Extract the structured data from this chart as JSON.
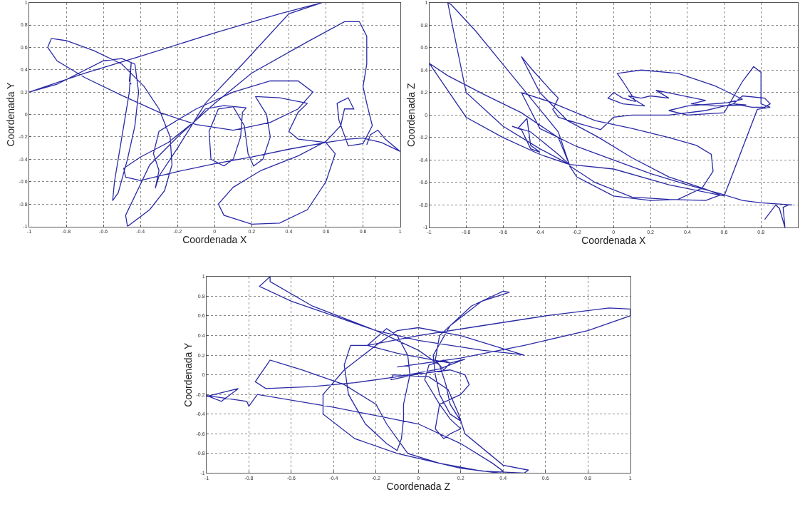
{
  "chart_data": [
    {
      "type": "line",
      "xlabel": "Coordenada X",
      "ylabel": "Coordenada Y",
      "xlim": [
        -1,
        1
      ],
      "ylim": [
        -1,
        1
      ],
      "xticks": [
        -1,
        -0.8,
        -0.6,
        -0.4,
        -0.2,
        0,
        0.2,
        0.4,
        0.6,
        0.8,
        1
      ],
      "yticks": [
        -1,
        -0.8,
        -0.6,
        -0.4,
        -0.2,
        0,
        0.2,
        0.4,
        0.6,
        0.8,
        1
      ],
      "grid": true,
      "line_style": "solid",
      "series": [
        {
          "color": "#2a2aa6",
          "x": [
            0.82,
            0.84,
            0.88,
            0.92,
            1.0,
            0.9,
            0.8,
            0.72,
            0.6,
            0.4,
            0.2,
            0,
            -0.2,
            -0.4,
            -0.48,
            -0.49,
            -0.4,
            -0.25,
            -0.1,
            -0.05,
            0.05,
            0.17,
            0.15,
            0.14,
            0.1,
            0.05,
            -0.02,
            -0.03,
            0.02,
            0.1,
            0.16,
            0.18,
            0.21,
            0.26,
            0.3,
            0.28,
            0.22,
            0.35,
            0.5,
            0.45,
            0.4,
            0.45,
            0.6,
            0.65,
            0.6,
            0.5,
            0.35,
            0.2,
            0.05,
            0.02,
            0.1,
            0.25,
            0.45,
            0.6,
            0.68,
            0.7,
            0.75,
            0.72,
            0.66,
            0.67,
            0.72,
            0.8,
            0.85,
            0.82,
            0.8,
            0.82,
            0.82,
            0.78,
            0.7,
            0.5,
            0.2,
            0,
            -0.2,
            -0.35,
            -0.48,
            -0.47,
            -0.35,
            -0.27,
            -0.23,
            -0.24,
            -0.3,
            -0.38,
            -0.5,
            -0.65,
            -0.8,
            -0.88,
            -0.9,
            -0.85,
            -0.7,
            -0.5,
            -0.3,
            -0.1,
            0.1,
            0.3,
            0.45,
            0.53,
            0.45,
            0.3,
            0.1,
            -0.1,
            -0.3,
            -0.33,
            -0.3,
            -0.32,
            -0.3,
            -0.2,
            -0.05,
            0.15,
            0.4,
            0.58,
            0.35,
            0,
            -0.4,
            -0.7,
            -1.0,
            -0.85,
            -0.6,
            -0.5,
            -0.43,
            -0.41,
            -0.43,
            -0.47,
            -0.52,
            -0.55,
            -0.54,
            -0.5,
            -0.46,
            -0.45,
            -0.46,
            -0.45
          ],
          "values": [
            -0.27,
            -0.18,
            -0.14,
            -0.22,
            -0.33,
            -0.25,
            -0.21,
            -0.22,
            -0.25,
            -0.31,
            -0.38,
            -0.44,
            -0.51,
            -0.59,
            -0.56,
            -0.48,
            -0.38,
            -0.25,
            -0.05,
            0.05,
            0.08,
            0.06,
            0.02,
            -0.2,
            -0.4,
            -0.46,
            -0.4,
            -0.15,
            0.05,
            0.07,
            -0.1,
            -0.35,
            -0.46,
            -0.4,
            -0.2,
            0.0,
            0.16,
            0.15,
            0.1,
            0.02,
            -0.15,
            -0.22,
            -0.25,
            -0.35,
            -0.6,
            -0.85,
            -0.97,
            -0.98,
            -0.9,
            -0.8,
            -0.65,
            -0.5,
            -0.37,
            -0.24,
            -0.1,
            0.05,
            0.05,
            0.15,
            0.1,
            -0.05,
            -0.28,
            -0.26,
            -0.1,
            0.1,
            0.25,
            0.45,
            0.7,
            0.83,
            0.83,
            0.65,
            0.37,
            0.1,
            -0.2,
            -0.45,
            -0.9,
            -1.0,
            -0.85,
            -0.68,
            -0.45,
            -0.2,
            0.05,
            0.25,
            0.45,
            0.57,
            0.66,
            0.68,
            0.6,
            0.48,
            0.33,
            0.17,
            0.02,
            -0.09,
            -0.14,
            -0.07,
            0.05,
            0.2,
            0.3,
            0.3,
            0.2,
            0.05,
            -0.15,
            -0.35,
            -0.5,
            -0.66,
            -0.55,
            -0.3,
            0.1,
            0.45,
            0.9,
            1.0,
            0.9,
            0.73,
            0.52,
            0.37,
            0.2,
            0.27,
            0.48,
            0.5,
            0.45,
            0.2,
            -0.1,
            -0.4,
            -0.7,
            -0.77,
            -0.6,
            -0.2,
            0.2,
            0.46,
            0.3,
            0.27
          ]
        }
      ]
    },
    {
      "type": "line",
      "xlabel": "Coordenada X",
      "ylabel": "Coordenada Z",
      "xlim": [
        -1,
        1
      ],
      "ylim": [
        -1,
        1
      ],
      "xticks": [
        -1,
        -0.8,
        -0.6,
        -0.4,
        -0.2,
        0,
        0.2,
        0.4,
        0.6,
        0.8,
        {
          "value": 1,
          "label": null
        }
      ],
      "yticks": [
        -1,
        -0.8,
        -0.6,
        -0.4,
        -0.2,
        0,
        0.2,
        0.4,
        0.6,
        0.8,
        1
      ],
      "grid": true,
      "line_style": "solid",
      "series": [
        {
          "color": "#2a2aa6",
          "x": [
            0.82,
            0.88,
            0.9,
            0.93,
            0.92,
            0.95,
            0.97,
            0.8,
            0.7,
            0.58,
            0.4,
            0.2,
            0,
            -0.2,
            -0.4,
            -0.5,
            -0.35,
            -0.1,
            0.1,
            0.3,
            0.45,
            0.53,
            0.54,
            0.48,
            0.35,
            0.2,
            0,
            -0.2,
            -0.24,
            -0.1,
            0.1,
            0.3,
            0.5,
            0.58,
            0.5,
            0.3,
            0.1,
            -0.08,
            -0.25,
            -0.4,
            -0.5,
            -0.44,
            -0.33,
            -0.3,
            -0.33,
            -0.3,
            -0.2,
            -0.07,
            0,
            0.1,
            0.3,
            0.5,
            0.65,
            0.75,
            0.82,
            0.85,
            0.82,
            0.7,
            0.65,
            0.72,
            0.55,
            0.42,
            0.5,
            0.35,
            0.23,
            0.3,
            0.2,
            0.15,
            0.08,
            0.17,
            0.05,
            -0.03,
            0.0,
            0.05,
            0.12,
            0.05,
            0.02,
            0.15,
            0.35,
            0.55,
            0.7,
            0.62,
            0.4,
            0.3,
            0.4,
            0.6,
            0.7,
            0.76,
            0.8,
            0.8,
            0.85,
            0.78,
            0.6,
            0.3,
            0,
            -0.24,
            -0.4,
            -0.6,
            -0.8,
            -1.0,
            -0.9,
            -0.7,
            -0.5,
            -0.3,
            -0.24,
            -0.4,
            -0.6,
            -0.8,
            -0.9,
            -0.88,
            -0.75,
            -0.6,
            -0.45,
            -0.3,
            -0.24,
            -0.3,
            -0.45,
            -0.55,
            -0.5,
            -0.45,
            -0.4,
            -0.45,
            -0.47,
            -0.52
          ],
          "values": [
            -0.93,
            -0.8,
            -0.83,
            -1.0,
            -0.82,
            -0.8,
            -0.8,
            -0.78,
            -0.76,
            -0.7,
            -0.62,
            -0.52,
            -0.4,
            -0.28,
            -0.12,
            0.2,
            0.12,
            -0.05,
            -0.12,
            -0.2,
            -0.27,
            -0.35,
            -0.5,
            -0.65,
            -0.75,
            -0.76,
            -0.72,
            -0.55,
            -0.45,
            -0.6,
            -0.73,
            -0.75,
            -0.76,
            -0.71,
            -0.66,
            -0.55,
            -0.38,
            -0.2,
            -0.05,
            0.2,
            0.52,
            0.4,
            0.2,
            0.15,
            0.05,
            -0.02,
            -0.07,
            -0.13,
            -0.02,
            0.0,
            0.0,
            0.04,
            0.1,
            0.07,
            0.07,
            0.1,
            0.15,
            0.17,
            0.1,
            0.09,
            0.08,
            0.1,
            0.13,
            0.18,
            0.22,
            0.15,
            0.17,
            0.15,
            0.17,
            0.08,
            0.1,
            0.15,
            0.2,
            0.15,
            0.12,
            0.3,
            0.37,
            0.4,
            0.37,
            0.26,
            0.14,
            0.11,
            0.08,
            0.04,
            0.0,
            0.02,
            0.3,
            0.43,
            0.38,
            0.1,
            0.07,
            0.05,
            -0.72,
            -0.62,
            -0.48,
            -0.44,
            -0.35,
            -0.2,
            -0.02,
            0.46,
            0.35,
            0.18,
            0.02,
            -0.2,
            -0.44,
            -0.3,
            -0.1,
            0.2,
            1.0,
            0.98,
            0.75,
            0.45,
            0.15,
            -0.15,
            -0.44,
            -0.35,
            -0.15,
            -0.1,
            -0.13,
            -0.3,
            -0.33,
            -0.27,
            -0.03,
            -0.12
          ]
        }
      ]
    },
    {
      "type": "line",
      "xlabel": "Coordenada Z",
      "ylabel": "Coordenada Y",
      "xlim": [
        -1,
        1
      ],
      "ylim": [
        -1,
        1
      ],
      "xticks": [
        -1,
        -0.8,
        -0.6,
        -0.4,
        -0.2,
        0,
        0.2,
        0.4,
        0.6,
        0.8,
        1
      ],
      "yticks": [
        -1,
        -0.8,
        -0.6,
        -0.4,
        -0.2,
        0,
        0.2,
        0.4,
        0.6,
        0.8,
        1
      ],
      "grid": true,
      "line_style": "solid",
      "series": [
        {
          "color": "#2a2aa6",
          "x": [
            -1,
            -0.85,
            -0.93,
            -1,
            -0.81,
            -0.8,
            -0.76,
            -0.4,
            0,
            0.2,
            0.35,
            0.4,
            0.38,
            0.2,
            -0.1,
            -0.3,
            -0.45,
            -0.45,
            -0.35,
            -0.2,
            -0.1,
            0,
            0.2,
            0.5,
            0.47,
            0.3,
            0,
            -0.2,
            -0.5,
            -0.7,
            -0.7,
            -0.75,
            -0.6,
            -0.4,
            -0.2,
            0,
            0.1,
            0.13,
            0.15,
            0.2,
            0.15,
            0.1,
            0.08,
            0.07,
            0.15,
            0.3,
            0.43,
            0.4,
            0.25,
            0.1,
            0.08,
            0.12,
            0.15,
            0.12,
            0.05,
            0.03,
            0.1,
            0.15,
            0.2,
            0.15,
            0.12,
            0.08,
            0.1,
            0.15,
            0.2,
            0.24,
            0.22,
            0.15,
            0,
            -0.13,
            -0.12,
            0.05,
            0.14,
            0.19,
            0.22,
            0.4,
            0.52,
            0.5,
            0.3,
            0.1,
            -0.05,
            -0.15,
            -0.2,
            -0.35,
            -0.55,
            -0.7,
            -0.77,
            -0.72,
            -0.5,
            -0.3,
            -0.1,
            0.1,
            0.22,
            0.15,
            -0.1,
            -0.24,
            -0.32,
            -0.35,
            -0.33,
            -0.25,
            -0.15,
            -0.1,
            -0.08,
            -0.07,
            -0.07,
            -0.04,
            -0.05,
            -0.1,
            -0.15,
            -0.24,
            0,
            0.3,
            0.6,
            0.9,
            1.0,
            1.0,
            0.8,
            0.5,
            0.2,
            -0.1
          ],
          "values": [
            -0.22,
            -0.14,
            -0.27,
            -0.21,
            -0.27,
            -0.32,
            -0.2,
            -0.33,
            -0.5,
            -0.7,
            -0.9,
            -0.98,
            -1.0,
            -0.95,
            -0.8,
            -0.65,
            -0.4,
            -0.2,
            0.05,
            0.3,
            0.45,
            0.48,
            0.4,
            0.2,
            0.21,
            0.25,
            0.35,
            0.45,
            0.7,
            0.95,
            1.0,
            0.9,
            0.75,
            0.6,
            0.45,
            0.25,
            0.1,
            -0.1,
            -0.3,
            -0.47,
            -0.4,
            -0.2,
            0.0,
            0.2,
            0.5,
            0.75,
            0.84,
            0.85,
            0.7,
            0.4,
            0.15,
            0.05,
            0.12,
            0.15,
            0.1,
            -0.05,
            -0.3,
            -0.45,
            -0.55,
            -0.6,
            -0.65,
            -0.55,
            -0.3,
            -0.25,
            -0.2,
            -0.1,
            0.0,
            0.05,
            0.01,
            -0.05,
            0.0,
            -0.02,
            -0.15,
            -0.4,
            -0.6,
            -0.92,
            -0.97,
            -1.0,
            -0.98,
            -0.9,
            -0.8,
            -0.5,
            -0.3,
            -0.1,
            0.05,
            0.15,
            -0.07,
            -0.14,
            -0.12,
            -0.08,
            -0.02,
            0.06,
            0.16,
            0.12,
            0.22,
            0.3,
            0.3,
            0.1,
            -0.2,
            -0.5,
            -0.7,
            -0.77,
            -0.65,
            -0.45,
            -0.3,
            0.0,
            0.2,
            0.4,
            0.47,
            0.3,
            0.4,
            0.5,
            0.6,
            0.68,
            0.67,
            0.6,
            0.45,
            0.3,
            0.17,
            0.08
          ]
        }
      ]
    }
  ]
}
